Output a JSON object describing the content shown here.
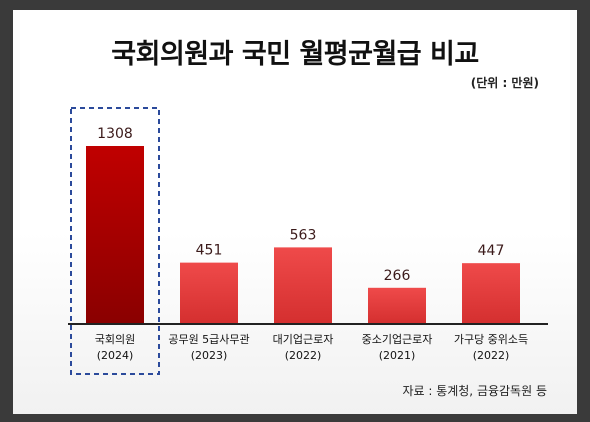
{
  "chart_data": {
    "type": "bar",
    "title": "국회의원과 국민 월평균월급 비교",
    "unit_note": "(단위 : 만원)",
    "source": "자료 : 통계청, 금융감독원 등",
    "categories": [
      {
        "name": "국회의원",
        "year": "(2024)"
      },
      {
        "name": "공무원 5급사무관",
        "year": "(2023)"
      },
      {
        "name": "대기업근로자",
        "year": "(2022)"
      },
      {
        "name": "중소기업근로자",
        "year": "(2021)"
      },
      {
        "name": "가구당 중위소득",
        "year": "(2022)"
      }
    ],
    "values": [
      1308,
      451,
      563,
      266,
      447
    ],
    "value_labels": [
      "1308",
      "451",
      "563",
      "266",
      "447"
    ],
    "ylim": [
      0,
      1308
    ],
    "highlight_index": 0,
    "colors": {
      "highlight_top": "#c00000",
      "highlight_bottom": "#8a0000",
      "bar_top": "#ef4a4a",
      "bar_bottom": "#d42f2f",
      "highlight_box": "#2b4a9b",
      "axis": "#222222"
    }
  }
}
